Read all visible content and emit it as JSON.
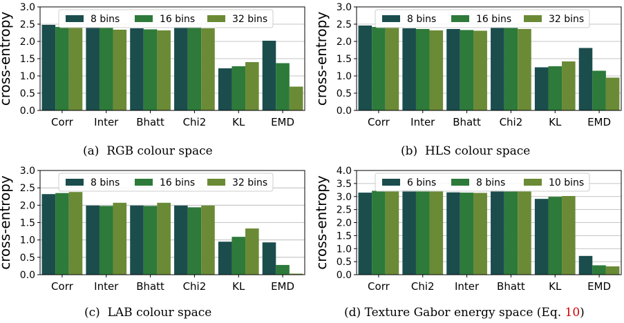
{
  "colors": {
    "series": [
      "#1b4d4d",
      "#2d7a3a",
      "#6b8a36"
    ],
    "grid": "#b0b0b0",
    "ref_link": "#d00000"
  },
  "chart_data": [
    {
      "type": "bar",
      "ylabel": "cross-entropy",
      "ylim": [
        0,
        3.0
      ],
      "yticks": [
        "0.0",
        "0.5",
        "1.0",
        "1.5",
        "2.0",
        "2.5",
        "3.0"
      ],
      "categories": [
        "Corr",
        "Inter",
        "Bhatt",
        "Chi2",
        "KL",
        "EMD"
      ],
      "series": [
        {
          "name": "8 bins",
          "values": [
            2.48,
            2.42,
            2.38,
            2.41,
            1.22,
            2.02
          ]
        },
        {
          "name": "16 bins",
          "values": [
            2.42,
            2.4,
            2.35,
            2.42,
            1.28,
            1.37
          ]
        },
        {
          "name": "32 bins",
          "values": [
            2.42,
            2.34,
            2.32,
            2.38,
            1.4,
            0.69
          ]
        }
      ],
      "grid": true,
      "legend": "top",
      "caption": {
        "label": "(a)",
        "text": "RGB colour space"
      }
    },
    {
      "type": "bar",
      "ylabel": "cross-entropy",
      "ylim": [
        0,
        3.0
      ],
      "yticks": [
        "0.0",
        "0.5",
        "1.0",
        "1.5",
        "2.0",
        "2.5",
        "3.0"
      ],
      "categories": [
        "Corr",
        "Inter",
        "Bhatt",
        "Chi2",
        "KL",
        "EMD"
      ],
      "series": [
        {
          "name": "8 bins",
          "values": [
            2.46,
            2.38,
            2.36,
            2.41,
            1.25,
            1.81
          ]
        },
        {
          "name": "16 bins",
          "values": [
            2.42,
            2.36,
            2.33,
            2.39,
            1.28,
            1.15
          ]
        },
        {
          "name": "32 bins",
          "values": [
            2.42,
            2.32,
            2.31,
            2.36,
            1.42,
            0.95
          ]
        }
      ],
      "grid": true,
      "legend": "top",
      "caption": {
        "label": "(b)",
        "text": "HLS colour space"
      }
    },
    {
      "type": "bar",
      "ylabel": "cross-entropy",
      "ylim": [
        0,
        3.0
      ],
      "yticks": [
        "0.0",
        "0.5",
        "1.0",
        "1.5",
        "2.0",
        "2.5",
        "3.0"
      ],
      "categories": [
        "Corr",
        "Inter",
        "Bhatt",
        "Chi2",
        "KL",
        "EMD"
      ],
      "series": [
        {
          "name": "8 bins",
          "values": [
            2.32,
            1.99,
            1.99,
            1.99,
            0.95,
            0.93
          ]
        },
        {
          "name": "16 bins",
          "values": [
            2.35,
            1.98,
            1.98,
            1.94,
            1.09,
            0.28
          ]
        },
        {
          "name": "32 bins",
          "values": [
            2.38,
            2.07,
            2.07,
            1.99,
            1.33,
            0.03
          ]
        }
      ],
      "grid": true,
      "legend": "top",
      "caption": {
        "label": "(c)",
        "text": "LAB colour space"
      }
    },
    {
      "type": "bar",
      "ylabel": "cross-entropy",
      "ylim": [
        0,
        4.0
      ],
      "yticks": [
        "0.0",
        "0.5",
        "1.0",
        "1.5",
        "2.0",
        "2.5",
        "3.0",
        "3.5",
        "4.0"
      ],
      "categories": [
        "Corr",
        "Chi2",
        "Inter",
        "Bhatt",
        "KL",
        "EMD"
      ],
      "series": [
        {
          "name": "6 bins",
          "values": [
            3.15,
            3.25,
            3.16,
            3.24,
            2.91,
            0.72
          ]
        },
        {
          "name": "8 bins",
          "values": [
            3.22,
            3.25,
            3.15,
            3.22,
            2.99,
            0.36
          ]
        },
        {
          "name": "10 bins",
          "values": [
            3.23,
            3.23,
            3.14,
            3.22,
            3.02,
            0.32
          ]
        }
      ],
      "grid": true,
      "legend": "top",
      "caption": {
        "label": "(d)",
        "text": "Texture Gabor energy space (Eq. ",
        "ref": "10",
        "suffix": ")"
      }
    }
  ]
}
